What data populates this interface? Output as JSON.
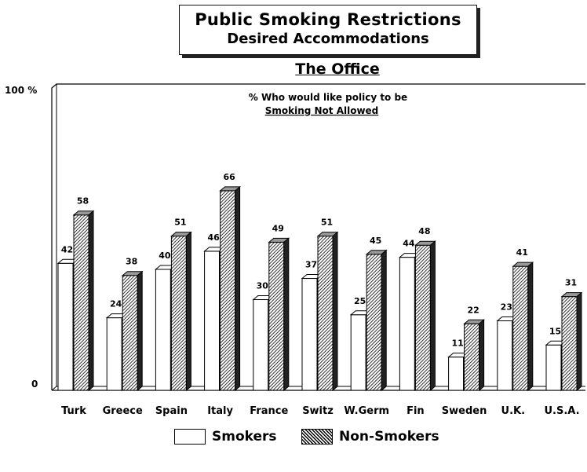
{
  "header": {
    "title": "Public Smoking Restrictions",
    "subtitle": "Desired Accommodations",
    "section": "The Office"
  },
  "chart_data": {
    "type": "bar",
    "annotation_line1": "% Who would like policy to be",
    "annotation_line2": "Smoking Not Allowed",
    "ytick_top": "100 %",
    "ytick_bottom": "0",
    "ylim": [
      0,
      100
    ],
    "categories": [
      "Turk",
      "Greece",
      "Spain",
      "Italy",
      "France",
      "Switz",
      "W.Germ",
      "Fin",
      "Sweden",
      "U.K.",
      "U.S.A."
    ],
    "series": [
      {
        "name": "Smokers",
        "values": [
          42,
          24,
          40,
          46,
          30,
          37,
          25,
          44,
          11,
          23,
          15
        ],
        "color": "#ffffff"
      },
      {
        "name": "Non-Smokers",
        "values": [
          58,
          38,
          51,
          66,
          49,
          51,
          45,
          48,
          22,
          41,
          31
        ],
        "color": "#333333"
      }
    ],
    "legend_position": "bottom-center"
  }
}
